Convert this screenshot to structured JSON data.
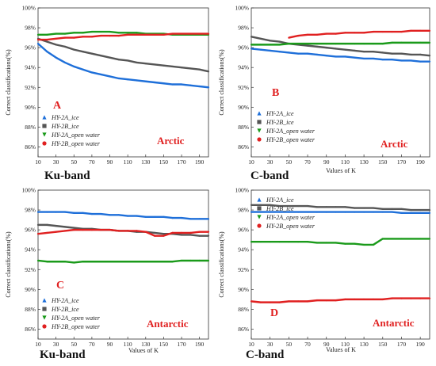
{
  "chart_data": [
    {
      "type": "line",
      "letter": "A",
      "region": "Arctic",
      "band": "Ku-band",
      "xlabel": "",
      "ylabel": "Correct classifications(%)",
      "xlim": [
        10,
        200
      ],
      "ylim": [
        85,
        100
      ],
      "xticks": [
        10,
        30,
        50,
        70,
        90,
        110,
        130,
        150,
        170,
        190
      ],
      "yticks": [
        "86%",
        "88%",
        "90%",
        "92%",
        "94%",
        "96%",
        "98%",
        "100%"
      ],
      "yticks_values": [
        86,
        88,
        90,
        92,
        94,
        96,
        98,
        100
      ],
      "legend_position": "bottom-left",
      "x": [
        10,
        20,
        30,
        40,
        50,
        60,
        70,
        80,
        90,
        100,
        110,
        120,
        130,
        140,
        150,
        160,
        170,
        180,
        190,
        200
      ],
      "series": [
        {
          "name": "HY-2A_ice",
          "color": "#1e6fd9",
          "marker": "triangle",
          "values": [
            96.4,
            95.6,
            95.0,
            94.5,
            94.1,
            93.8,
            93.5,
            93.3,
            93.1,
            92.9,
            92.8,
            92.7,
            92.6,
            92.5,
            92.4,
            92.3,
            92.3,
            92.2,
            92.1,
            92.0
          ]
        },
        {
          "name": "HY-2B_ice",
          "color": "#555555",
          "marker": "square",
          "values": [
            96.9,
            96.6,
            96.3,
            96.1,
            95.8,
            95.6,
            95.4,
            95.2,
            95.0,
            94.8,
            94.7,
            94.5,
            94.4,
            94.3,
            94.2,
            94.1,
            94.0,
            93.9,
            93.8,
            93.6
          ]
        },
        {
          "name": "HY-2A_open water",
          "color": "#1a9a1a",
          "marker": "triangle-down",
          "values": [
            97.3,
            97.3,
            97.4,
            97.4,
            97.5,
            97.5,
            97.6,
            97.6,
            97.6,
            97.5,
            97.5,
            97.5,
            97.4,
            97.4,
            97.4,
            97.3,
            97.3,
            97.3,
            97.3,
            97.3
          ]
        },
        {
          "name": "HY-2B_open water",
          "color": "#e02020",
          "marker": "circle",
          "values": [
            96.8,
            96.8,
            96.9,
            97.0,
            97.0,
            97.1,
            97.1,
            97.2,
            97.2,
            97.2,
            97.3,
            97.3,
            97.3,
            97.3,
            97.3,
            97.4,
            97.4,
            97.4,
            97.4,
            97.4
          ]
        }
      ]
    },
    {
      "type": "line",
      "letter": "B",
      "region": "Arctic",
      "band": "C-band",
      "xlabel": "Values of K",
      "ylabel": "Correct classifications(%)",
      "xlim": [
        10,
        200
      ],
      "ylim": [
        85,
        100
      ],
      "xticks": [
        10,
        30,
        50,
        70,
        90,
        110,
        130,
        150,
        170,
        190
      ],
      "yticks": [
        "86%",
        "88%",
        "90%",
        "92%",
        "94%",
        "96%",
        "98%",
        "100%"
      ],
      "yticks_values": [
        86,
        88,
        90,
        92,
        94,
        96,
        98,
        100
      ],
      "legend_position": "bottom-left",
      "x": [
        10,
        20,
        30,
        40,
        50,
        60,
        70,
        80,
        90,
        100,
        110,
        120,
        130,
        140,
        150,
        160,
        170,
        180,
        190,
        200
      ],
      "series": [
        {
          "name": "HY-2A_ice",
          "color": "#1e6fd9",
          "marker": "triangle",
          "values": [
            95.9,
            95.8,
            95.7,
            95.6,
            95.5,
            95.4,
            95.4,
            95.3,
            95.2,
            95.1,
            95.1,
            95.0,
            94.9,
            94.9,
            94.8,
            94.8,
            94.7,
            94.7,
            94.6,
            94.6
          ]
        },
        {
          "name": "HY-2B_ice",
          "color": "#555555",
          "marker": "square",
          "values": [
            97.1,
            96.9,
            96.7,
            96.6,
            96.4,
            96.3,
            96.2,
            96.1,
            96.0,
            95.9,
            95.8,
            95.7,
            95.6,
            95.6,
            95.5,
            95.4,
            95.4,
            95.3,
            95.3,
            95.2
          ]
        },
        {
          "name": "HY-2A_open water",
          "color": "#1a9a1a",
          "marker": "triangle-down",
          "values": [
            96.3,
            96.3,
            96.3,
            96.3,
            96.4,
            96.4,
            96.4,
            96.4,
            96.4,
            96.4,
            96.4,
            96.4,
            96.4,
            96.4,
            96.4,
            96.5,
            96.5,
            96.5,
            96.5,
            96.5
          ]
        },
        {
          "name": "HY-2B_open water",
          "color": "#e02020",
          "marker": "circle",
          "values": [
            null,
            null,
            null,
            null,
            97.0,
            97.2,
            97.3,
            97.3,
            97.4,
            97.4,
            97.5,
            97.5,
            97.5,
            97.6,
            97.6,
            97.6,
            97.6,
            97.7,
            97.7,
            97.7
          ]
        }
      ]
    },
    {
      "type": "line",
      "letter": "C",
      "region": "Antarctic",
      "band": "Ku-band",
      "xlabel": "Values of K",
      "ylabel": "Correct classifications(%)",
      "xlim": [
        10,
        200
      ],
      "ylim": [
        85,
        100
      ],
      "xticks": [
        10,
        30,
        50,
        70,
        90,
        110,
        130,
        150,
        170,
        190
      ],
      "yticks": [
        "86%",
        "88%",
        "90%",
        "92%",
        "94%",
        "96%",
        "98%",
        "100%"
      ],
      "yticks_values": [
        86,
        88,
        90,
        92,
        94,
        96,
        98,
        100
      ],
      "legend_position": "bottom-left",
      "x": [
        10,
        20,
        30,
        40,
        50,
        60,
        70,
        80,
        90,
        100,
        110,
        120,
        130,
        140,
        150,
        160,
        170,
        180,
        190,
        200
      ],
      "series": [
        {
          "name": "HY-2A_ice",
          "color": "#1e6fd9",
          "marker": "triangle",
          "values": [
            97.8,
            97.8,
            97.8,
            97.8,
            97.7,
            97.7,
            97.6,
            97.6,
            97.5,
            97.5,
            97.4,
            97.4,
            97.3,
            97.3,
            97.3,
            97.2,
            97.2,
            97.1,
            97.1,
            97.1
          ]
        },
        {
          "name": "HY-2B_ice",
          "color": "#555555",
          "marker": "square",
          "values": [
            96.5,
            96.5,
            96.4,
            96.3,
            96.2,
            96.1,
            96.1,
            96.0,
            96.0,
            95.9,
            95.9,
            95.8,
            95.8,
            95.7,
            95.6,
            95.6,
            95.5,
            95.5,
            95.4,
            95.4
          ]
        },
        {
          "name": "HY-2A_open water",
          "color": "#1a9a1a",
          "marker": "triangle-down",
          "values": [
            92.9,
            92.8,
            92.8,
            92.8,
            92.7,
            92.8,
            92.8,
            92.8,
            92.8,
            92.8,
            92.8,
            92.8,
            92.8,
            92.8,
            92.8,
            92.8,
            92.9,
            92.9,
            92.9,
            92.9
          ]
        },
        {
          "name": "HY-2B_open water",
          "color": "#e02020",
          "marker": "circle",
          "values": [
            95.6,
            95.7,
            95.8,
            95.9,
            96.0,
            96.0,
            96.0,
            96.0,
            96.0,
            95.9,
            95.9,
            95.9,
            95.8,
            95.4,
            95.4,
            95.7,
            95.7,
            95.7,
            95.8,
            95.8
          ]
        }
      ]
    },
    {
      "type": "line",
      "letter": "D",
      "region": "Antarctic",
      "band": "C-band",
      "xlabel": "Values of K",
      "ylabel": "Correct classifications(%)",
      "xlim": [
        10,
        200
      ],
      "ylim": [
        85,
        100
      ],
      "xticks": [
        10,
        30,
        50,
        70,
        90,
        110,
        130,
        150,
        170,
        190
      ],
      "yticks": [
        "86%",
        "88%",
        "90%",
        "92%",
        "94%",
        "96%",
        "98%",
        "100%"
      ],
      "yticks_values": [
        86,
        88,
        90,
        92,
        94,
        96,
        98,
        100
      ],
      "legend_position": "top-left",
      "x": [
        10,
        20,
        30,
        40,
        50,
        60,
        70,
        80,
        90,
        100,
        110,
        120,
        130,
        140,
        150,
        160,
        170,
        180,
        190,
        200
      ],
      "series": [
        {
          "name": "HY-2A_ice",
          "color": "#1e6fd9",
          "marker": "triangle",
          "values": [
            97.8,
            97.8,
            97.8,
            97.8,
            97.8,
            97.8,
            97.8,
            97.8,
            97.8,
            97.8,
            97.8,
            97.8,
            97.8,
            97.8,
            97.8,
            97.8,
            97.7,
            97.7,
            97.7,
            97.7
          ]
        },
        {
          "name": "HY-2B_ice",
          "color": "#555555",
          "marker": "square",
          "values": [
            98.5,
            98.5,
            98.5,
            98.4,
            98.4,
            98.4,
            98.4,
            98.3,
            98.3,
            98.3,
            98.3,
            98.2,
            98.2,
            98.2,
            98.1,
            98.1,
            98.1,
            98.0,
            98.0,
            98.0
          ]
        },
        {
          "name": "HY-2A_open water",
          "color": "#1a9a1a",
          "marker": "triangle-down",
          "values": [
            94.8,
            94.8,
            94.8,
            94.8,
            94.8,
            94.8,
            94.8,
            94.7,
            94.7,
            94.7,
            94.6,
            94.6,
            94.5,
            94.5,
            95.1,
            95.1,
            95.1,
            95.1,
            95.1,
            95.1
          ]
        },
        {
          "name": "HY-2B_open water",
          "color": "#e02020",
          "marker": "circle",
          "values": [
            88.8,
            88.7,
            88.7,
            88.7,
            88.8,
            88.8,
            88.8,
            88.9,
            88.9,
            88.9,
            89.0,
            89.0,
            89.0,
            89.0,
            89.0,
            89.1,
            89.1,
            89.1,
            89.1,
            89.1
          ]
        }
      ]
    }
  ]
}
